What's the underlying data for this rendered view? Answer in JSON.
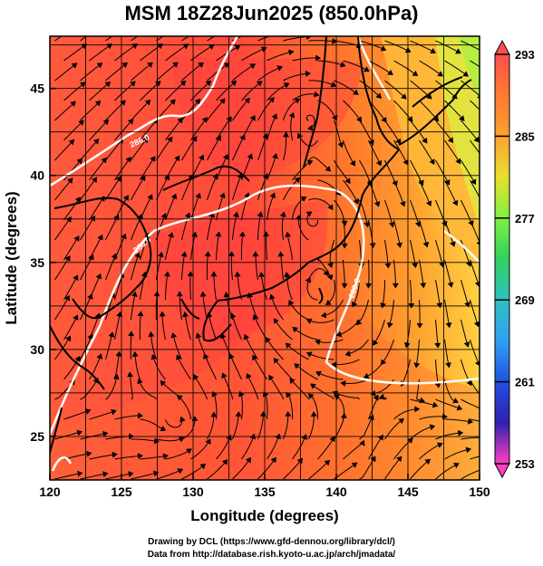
{
  "title": "MSM 18Z28Jun2025 (850.0hPa)",
  "xlabel": "Longitude (degrees)",
  "ylabel": "Latitude  (degrees)",
  "x_ticks": [
    "120",
    "125",
    "130",
    "135",
    "140",
    "145",
    "150"
  ],
  "y_ticks": [
    "45",
    "40",
    "35",
    "30",
    "25"
  ],
  "colorbar": {
    "ticks": [
      "293",
      "285",
      "277",
      "269",
      "261",
      "253"
    ],
    "colors": [
      "#ff5050",
      "#ff7a30",
      "#ffa030",
      "#ffd040",
      "#c8f040",
      "#40e040",
      "#30d0a0",
      "#30b0e0",
      "#3060e0",
      "#2020b0",
      "#a020c0",
      "#ff40c0"
    ]
  },
  "contour_labels": [
    "286.0",
    "289.0",
    "286.0"
  ],
  "credits": {
    "line1": "Drawing by DCL (https://www.gfd-dennou.org/library/dcl/)",
    "line2": "Data from http://database.rish.kyoto-u.ac.jp/arch/jmadata/"
  }
}
